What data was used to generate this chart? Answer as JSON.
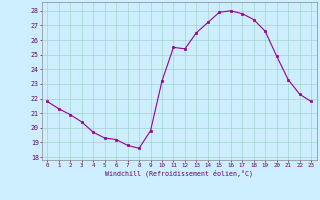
{
  "hours": [
    0,
    1,
    2,
    3,
    4,
    5,
    6,
    7,
    8,
    9,
    10,
    11,
    12,
    13,
    14,
    15,
    16,
    17,
    18,
    19,
    20,
    21,
    22,
    23
  ],
  "values": [
    21.8,
    21.3,
    20.9,
    20.4,
    19.7,
    19.3,
    19.2,
    18.8,
    18.6,
    19.8,
    23.2,
    25.5,
    25.4,
    26.5,
    27.2,
    27.9,
    28.0,
    27.8,
    27.4,
    26.6,
    24.9,
    23.3,
    22.3,
    21.8
  ],
  "line_color": "#990099",
  "marker_color": "#990099",
  "bg_color": "#cceeff",
  "grid_color": "#99ccbb",
  "ylabel_ticks": [
    18,
    19,
    20,
    21,
    22,
    23,
    24,
    25,
    26,
    27,
    28
  ],
  "xlabel_ticks": [
    0,
    1,
    2,
    3,
    4,
    5,
    6,
    7,
    8,
    9,
    10,
    11,
    12,
    13,
    14,
    15,
    16,
    17,
    18,
    19,
    20,
    21,
    22,
    23
  ],
  "xlabel": "Windchill (Refroidissement éolien,°C)",
  "ylim": [
    17.8,
    28.6
  ],
  "xlim": [
    -0.5,
    23.5
  ]
}
